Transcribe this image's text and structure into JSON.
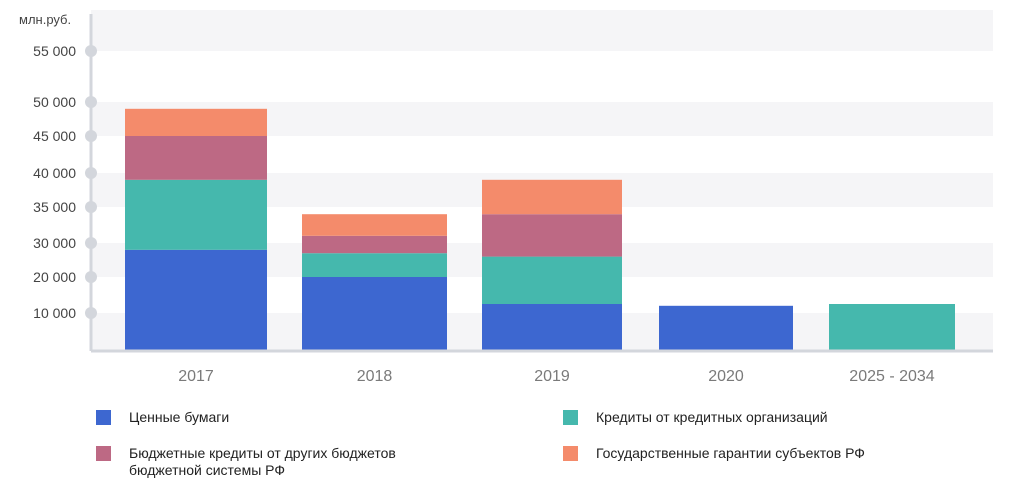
{
  "chart_data": {
    "type": "bar",
    "stacked": true,
    "ylabel": "млн.руб.",
    "categories": [
      "2017",
      "2018",
      "2019",
      "2020",
      "2025 - 2034"
    ],
    "y_ticks": [
      {
        "label": "10 000",
        "value": 10000
      },
      {
        "label": "20 000",
        "value": 20000
      },
      {
        "label": "30 000",
        "value": 30000
      },
      {
        "label": "35 000",
        "value": 35000
      },
      {
        "label": "40 000",
        "value": 40000
      },
      {
        "label": "45 000",
        "value": 45000
      },
      {
        "label": "50 000",
        "value": 50000
      },
      {
        "label": "55 000",
        "value": 55000
      }
    ],
    "series": [
      {
        "name": "Ценные бумаги",
        "color": "#3d67d0",
        "values": [
          28000,
          20000,
          12500,
          12000,
          0
        ]
      },
      {
        "name": "Кредиты от кредитных организаций",
        "color": "#45b8ad",
        "values": [
          11000,
          7000,
          13500,
          0,
          12500
        ]
      },
      {
        "name": "Бюджетные кредиты от других бюджетов бюджетной системы РФ",
        "color": "#bd6984",
        "values": [
          6000,
          4000,
          8000,
          0,
          0
        ]
      },
      {
        "name": "Государственные гарантии субъектов РФ",
        "color": "#f48b6b",
        "values": [
          4000,
          3000,
          5000,
          0,
          0
        ]
      }
    ],
    "grid": "alternating bands",
    "legend_position": "bottom"
  }
}
